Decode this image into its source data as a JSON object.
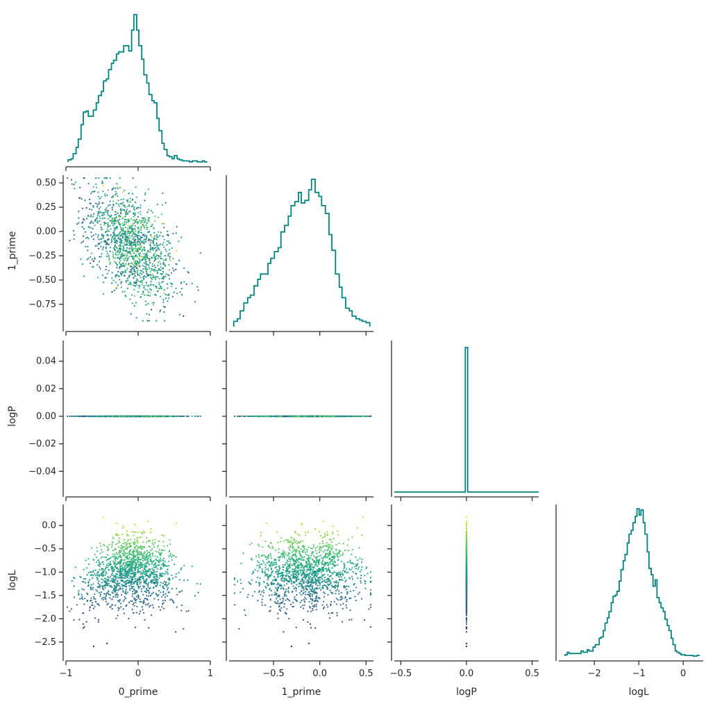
{
  "chart_data": {
    "type": "pairplot-corner",
    "variables": [
      "0_prime",
      "1_prime",
      "logP",
      "logL"
    ],
    "diag_color": "#00827f",
    "scatter_colormap": "viridis",
    "color_variable": "logL",
    "ranges": {
      "0_prime": [
        -1.0,
        1.0
      ],
      "1_prime": [
        -0.98,
        0.58
      ],
      "logP": [
        -0.055,
        0.055
      ],
      "logL": [
        -2.8,
        0.45
      ]
    },
    "logP_hist_range": [
      -0.55,
      0.55
    ],
    "ticks": {
      "0_prime": [
        -1,
        0,
        1
      ],
      "0_prime_labels": [
        "−1",
        "0",
        "1"
      ],
      "1_prime_x": [
        -0.5,
        0.0,
        0.5
      ],
      "1_prime_x_labels": [
        "−0.5",
        "0.0",
        "0.5"
      ],
      "1_prime_y": [
        0.5,
        0.25,
        0.0,
        -0.25,
        -0.5,
        -0.75
      ],
      "1_prime_y_labels": [
        "0.50",
        "0.25",
        "0.00",
        "−0.25",
        "−0.50",
        "−0.75"
      ],
      "logP_y": [
        0.04,
        0.02,
        0.0,
        -0.02,
        -0.04
      ],
      "logP_y_labels": [
        "0.04",
        "0.02",
        "0.00",
        "−0.02",
        "−0.04"
      ],
      "logP_x": [
        -0.5,
        0.0,
        0.5
      ],
      "logP_x_labels": [
        "−0.5",
        "0.0",
        "0.5"
      ],
      "logL_y": [
        0.0,
        -0.5,
        -1.0,
        -1.5,
        -2.0,
        -2.5
      ],
      "logL_y_labels": [
        "0.0",
        "−0.5",
        "−1.0",
        "−1.5",
        "−2.0",
        "−2.5"
      ],
      "logL_x": [
        -2,
        -1,
        0
      ],
      "logL_x_labels": [
        "−2",
        "−1",
        "0"
      ]
    },
    "hist_0_prime": {
      "edges": [
        -0.97,
        -0.93,
        -0.9,
        -0.86,
        -0.83,
        -0.79,
        -0.76,
        -0.72,
        -0.69,
        -0.65,
        -0.62,
        -0.58,
        -0.55,
        -0.51,
        -0.48,
        -0.44,
        -0.41,
        -0.37,
        -0.34,
        -0.3,
        -0.27,
        -0.23,
        -0.2,
        -0.16,
        -0.13,
        -0.09,
        -0.06,
        -0.02,
        0.01,
        0.05,
        0.08,
        0.12,
        0.15,
        0.19,
        0.22,
        0.26,
        0.29,
        0.33,
        0.36,
        0.4,
        0.43,
        0.47,
        0.5,
        0.54,
        0.57,
        0.61,
        0.64,
        0.68,
        0.71,
        0.75,
        0.78,
        0.82,
        0.85,
        0.89,
        0.92,
        0.96
      ],
      "counts": [
        2,
        3,
        8,
        14,
        22,
        36,
        48,
        49,
        44,
        44,
        50,
        57,
        64,
        68,
        78,
        80,
        89,
        95,
        98,
        104,
        106,
        106,
        112,
        112,
        107,
        127,
        142,
        127,
        112,
        99,
        84,
        76,
        65,
        59,
        57,
        42,
        30,
        18,
        12,
        6,
        5,
        3,
        6,
        3,
        2,
        1,
        1,
        1,
        0,
        1,
        1,
        0,
        0,
        1,
        0
      ]
    },
    "hist_1_prime": {
      "edges": [
        -0.93,
        -0.89,
        -0.86,
        -0.82,
        -0.78,
        -0.75,
        -0.71,
        -0.67,
        -0.64,
        -0.6,
        -0.56,
        -0.53,
        -0.49,
        -0.45,
        -0.42,
        -0.38,
        -0.34,
        -0.31,
        -0.27,
        -0.23,
        -0.2,
        -0.16,
        -0.12,
        -0.09,
        -0.05,
        -0.01,
        0.02,
        0.06,
        0.1,
        0.13,
        0.17,
        0.21,
        0.24,
        0.28,
        0.32,
        0.35,
        0.39,
        0.43,
        0.46,
        0.5,
        0.54
      ],
      "counts": [
        4,
        6,
        12,
        18,
        22,
        24,
        31,
        36,
        40,
        40,
        48,
        52,
        57,
        60,
        72,
        77,
        84,
        92,
        95,
        102,
        94,
        96,
        104,
        112,
        102,
        99,
        92,
        86,
        70,
        58,
        40,
        30,
        22,
        14,
        12,
        8,
        6,
        5,
        4,
        3
      ]
    },
    "hist_logP": {
      "x": 0.0,
      "width": 0.018,
      "count": 1,
      "ylim_top": 1.0
    },
    "hist_logL": {
      "edges": [
        -2.66,
        -2.61,
        -2.57,
        -2.52,
        -2.48,
        -2.43,
        -2.39,
        -2.34,
        -2.3,
        -2.25,
        -2.21,
        -2.16,
        -2.12,
        -2.07,
        -2.03,
        -1.98,
        -1.94,
        -1.89,
        -1.85,
        -1.8,
        -1.76,
        -1.71,
        -1.67,
        -1.62,
        -1.58,
        -1.53,
        -1.49,
        -1.44,
        -1.4,
        -1.35,
        -1.31,
        -1.26,
        -1.22,
        -1.17,
        -1.13,
        -1.08,
        -1.04,
        -0.99,
        -0.95,
        -0.9,
        -0.86,
        -0.81,
        -0.77,
        -0.72,
        -0.68,
        -0.63,
        -0.59,
        -0.54,
        -0.5,
        -0.45,
        -0.41,
        -0.36,
        -0.32,
        -0.27,
        -0.23,
        -0.18,
        -0.14,
        -0.09,
        -0.05,
        0.0,
        0.04,
        0.09,
        0.13,
        0.18,
        0.22,
        0.27,
        0.31,
        0.36
      ],
      "counts": [
        2,
        6,
        4,
        4,
        4,
        4,
        4,
        4,
        8,
        6,
        6,
        10,
        8,
        8,
        14,
        18,
        18,
        28,
        30,
        40,
        52,
        60,
        70,
        84,
        94,
        96,
        102,
        118,
        136,
        150,
        160,
        178,
        192,
        198,
        210,
        220,
        232,
        222,
        230,
        210,
        192,
        164,
        138,
        128,
        110,
        120,
        92,
        84,
        76,
        70,
        58,
        48,
        40,
        28,
        18,
        8,
        6,
        4,
        2,
        2,
        1,
        1,
        1,
        1,
        0,
        0,
        1
      ]
    }
  }
}
